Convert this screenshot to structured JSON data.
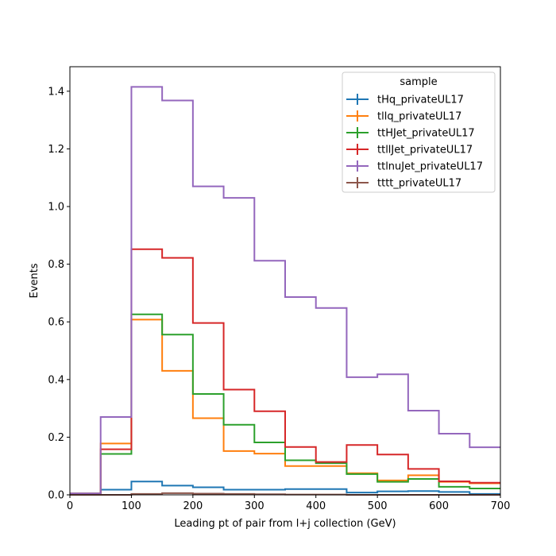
{
  "chart_data": {
    "type": "line",
    "drawstyle": "steps-post",
    "xlabel": "Leading pt of pair from l+j collection (GeV)",
    "ylabel": "Events",
    "xlim": [
      0,
      700
    ],
    "ylim": [
      0,
      1.485
    ],
    "xticks": [
      0,
      100,
      200,
      300,
      400,
      500,
      600,
      700
    ],
    "yticks": [
      0.0,
      0.2,
      0.4,
      0.6,
      0.8,
      1.0,
      1.2,
      1.4
    ],
    "xtick_labels": [
      "0",
      "100",
      "200",
      "300",
      "400",
      "500",
      "600",
      "700"
    ],
    "ytick_labels": [
      "0.0",
      "0.2",
      "0.4",
      "0.6",
      "0.8",
      "1.0",
      "1.2",
      "1.4"
    ],
    "grid": false,
    "legend": {
      "title": "sample",
      "placement": "top-right"
    },
    "bin_edges": [
      0,
      50,
      100,
      150,
      200,
      250,
      300,
      350,
      400,
      450,
      500,
      550,
      600,
      650,
      700
    ],
    "series": [
      {
        "name": "tHq_privateUL17",
        "color": "#1f77b4",
        "values": [
          0.0,
          0.018,
          0.046,
          0.032,
          0.026,
          0.018,
          0.018,
          0.02,
          0.02,
          0.008,
          0.012,
          0.013,
          0.01,
          0.003
        ]
      },
      {
        "name": "tllq_privateUL17",
        "color": "#ff7f0e",
        "values": [
          0.0,
          0.178,
          0.608,
          0.43,
          0.266,
          0.152,
          0.143,
          0.1,
          0.1,
          0.075,
          0.05,
          0.068,
          0.045,
          0.04
        ]
      },
      {
        "name": "ttHJet_privateUL17",
        "color": "#2ca02c",
        "values": [
          0.005,
          0.142,
          0.626,
          0.556,
          0.35,
          0.243,
          0.182,
          0.12,
          0.11,
          0.072,
          0.045,
          0.055,
          0.028,
          0.022
        ]
      },
      {
        "name": "ttllJet_privateUL17",
        "color": "#d62728",
        "values": [
          0.005,
          0.158,
          0.852,
          0.822,
          0.596,
          0.365,
          0.29,
          0.166,
          0.114,
          0.173,
          0.14,
          0.09,
          0.047,
          0.042
        ]
      },
      {
        "name": "ttlnuJet_privateUL17",
        "color": "#9467bd",
        "values": [
          0.005,
          0.27,
          1.415,
          1.368,
          1.07,
          1.03,
          0.812,
          0.686,
          0.648,
          0.408,
          0.418,
          0.292,
          0.212,
          0.165
        ]
      },
      {
        "name": "tttt_privateUL17",
        "color": "#8c564b",
        "values": [
          0.0,
          0.0,
          0.003,
          0.006,
          0.004,
          0.003,
          0.002,
          0.001,
          0.001,
          0.0,
          0.0,
          0.0,
          0.0,
          0.0
        ]
      }
    ]
  }
}
